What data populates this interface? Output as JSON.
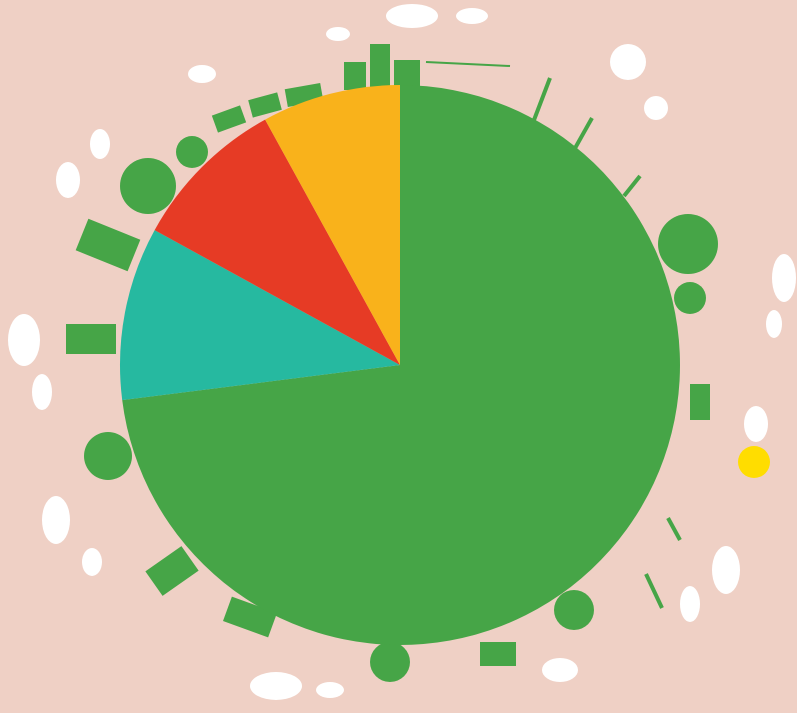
{
  "chart_data": {
    "type": "pie",
    "values": [
      73,
      10,
      9,
      8
    ],
    "colors": [
      "#46a547",
      "#26b9a0",
      "#e63b25",
      "#f9b21b"
    ],
    "start_angle": 0,
    "direction": "clockwise"
  }
}
